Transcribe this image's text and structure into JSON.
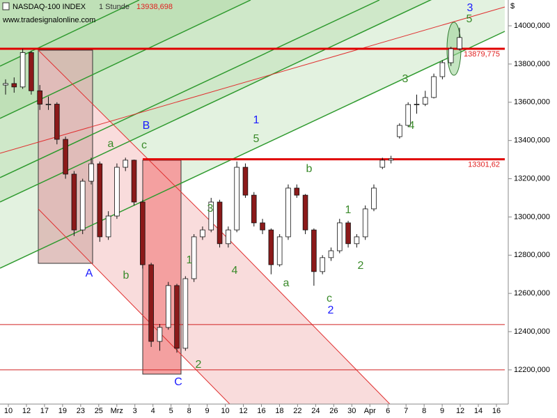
{
  "chart_data": {
    "type": "candlestick",
    "title": "NASDAQ-100 INDEX",
    "interval": "1 Stunde",
    "last_price": "13938,698",
    "source": "www.tradesignalonline.com",
    "currency": "$",
    "ylim": [
      12021,
      14135
    ],
    "yticks": [
      {
        "value": 12200,
        "label": "12200,000"
      },
      {
        "value": 12400,
        "label": "12400,000"
      },
      {
        "value": 12600,
        "label": "12600,000"
      },
      {
        "value": 12800,
        "label": "12800,000"
      },
      {
        "value": 13000,
        "label": "13000,000"
      },
      {
        "value": 13200,
        "label": "13200,000"
      },
      {
        "value": 13400,
        "label": "13400,000"
      },
      {
        "value": 13600,
        "label": "13600,000"
      },
      {
        "value": 13800,
        "label": "13800,000"
      },
      {
        "value": 14000,
        "label": "14000,000"
      }
    ],
    "xticks": [
      "10",
      "12",
      "17",
      "19",
      "23",
      "25",
      "Mrz",
      "3",
      "4",
      "5",
      "8",
      "9",
      "10",
      "12",
      "16",
      "18",
      "22",
      "24",
      "26",
      "30",
      "Apr",
      "6",
      "7",
      "8",
      "9",
      "12",
      "14",
      "16"
    ],
    "up_color": "#ffffff",
    "down_color": "#8b1a1a",
    "levels": [
      {
        "value": 13879.775,
        "label": "13879,775"
      },
      {
        "value": 13301.62,
        "label": "13301,62"
      }
    ],
    "support_lines": [
      12437,
      12200
    ],
    "annotations": [
      {
        "text": "A",
        "color": "#1a1aff"
      },
      {
        "text": "B",
        "color": "#1a1aff"
      },
      {
        "text": "C",
        "color": "#1a1aff"
      },
      {
        "text": "1",
        "color": "#1a1aff"
      },
      {
        "text": "2",
        "color": "#1a1aff"
      },
      {
        "text": "3",
        "color": "#1a1aff"
      },
      {
        "text": "a",
        "color": "#3a8a2a"
      },
      {
        "text": "b",
        "color": "#3a8a2a"
      },
      {
        "text": "c",
        "color": "#3a8a2a"
      },
      {
        "text": "2",
        "color": "#3a8a2a"
      },
      {
        "text": "1",
        "color": "#3a8a2a"
      },
      {
        "text": "3",
        "color": "#3a8a2a"
      },
      {
        "text": "4",
        "color": "#3a8a2a"
      },
      {
        "text": "5",
        "color": "#3a8a2a"
      },
      {
        "text": "a",
        "color": "#3a8a2a"
      },
      {
        "text": "b",
        "color": "#3a8a2a"
      },
      {
        "text": "c",
        "color": "#3a8a2a"
      },
      {
        "text": "1",
        "color": "#3a8a2a"
      },
      {
        "text": "2",
        "color": "#3a8a2a"
      },
      {
        "text": "3",
        "color": "#3a8a2a"
      },
      {
        "text": "4",
        "color": "#3a8a2a"
      },
      {
        "text": "5",
        "color": "#3a8a2a"
      }
    ],
    "candles": [
      [
        13690,
        13720,
        13640,
        13698
      ],
      [
        13698,
        13730,
        13650,
        13680
      ],
      [
        13680,
        13880,
        13670,
        13860
      ],
      [
        13860,
        13870,
        13640,
        13660
      ],
      [
        13660,
        13690,
        13560,
        13590
      ],
      [
        13590,
        13630,
        13560,
        13590
      ],
      [
        13590,
        13600,
        13380,
        13406
      ],
      [
        13406,
        13420,
        13200,
        13224
      ],
      [
        13224,
        13240,
        12900,
        12932
      ],
      [
        12932,
        13200,
        12910,
        13187
      ],
      [
        13187,
        13310,
        13170,
        13278
      ],
      [
        13278,
        13290,
        12870,
        12896
      ],
      [
        12896,
        13030,
        12880,
        13005
      ],
      [
        13005,
        13280,
        12990,
        13260
      ],
      [
        13260,
        13310,
        13240,
        13297
      ],
      [
        13297,
        13300,
        13060,
        13078
      ],
      [
        13078,
        13090,
        12730,
        12750
      ],
      [
        12750,
        12760,
        12320,
        12349
      ],
      [
        12349,
        12440,
        12300,
        12422
      ],
      [
        12422,
        12660,
        12410,
        12641
      ],
      [
        12641,
        12650,
        12290,
        12313
      ],
      [
        12313,
        12690,
        12300,
        12677
      ],
      [
        12677,
        12910,
        12660,
        12896
      ],
      [
        12896,
        12950,
        12880,
        12932
      ],
      [
        12932,
        13100,
        12920,
        13078
      ],
      [
        13078,
        13090,
        12840,
        12860
      ],
      [
        12860,
        12950,
        12840,
        12932
      ],
      [
        12932,
        13290,
        12920,
        13260
      ],
      [
        13260,
        13280,
        13100,
        13114
      ],
      [
        13114,
        13130,
        12950,
        12969
      ],
      [
        12969,
        12990,
        12910,
        12932
      ],
      [
        12932,
        12940,
        12700,
        12750
      ],
      [
        12750,
        12910,
        12740,
        12896
      ],
      [
        12896,
        13170,
        12880,
        13151
      ],
      [
        13151,
        13170,
        13100,
        13114
      ],
      [
        13114,
        13120,
        12910,
        12932
      ],
      [
        12932,
        12940,
        12640,
        12714
      ],
      [
        12714,
        12800,
        12700,
        12787
      ],
      [
        12787,
        12840,
        12770,
        12823
      ],
      [
        12823,
        12990,
        12810,
        12969
      ],
      [
        12969,
        12980,
        12840,
        12860
      ],
      [
        12860,
        12910,
        12840,
        12896
      ],
      [
        12896,
        13060,
        12880,
        13042
      ],
      [
        13042,
        13170,
        13030,
        13151
      ],
      [
        13260,
        13310,
        13250,
        13297
      ],
      [
        13297,
        13320,
        13280,
        13304
      ],
      [
        13420,
        13490,
        13410,
        13479
      ],
      [
        13479,
        13600,
        13470,
        13588
      ],
      [
        13588,
        13640,
        13540,
        13590
      ],
      [
        13590,
        13660,
        13580,
        13625
      ],
      [
        13625,
        13750,
        13620,
        13734
      ],
      [
        13734,
        13820,
        13720,
        13807
      ],
      [
        13807,
        13890,
        13790,
        13880
      ],
      [
        13880,
        13990,
        13870,
        13938.698
      ]
    ]
  }
}
